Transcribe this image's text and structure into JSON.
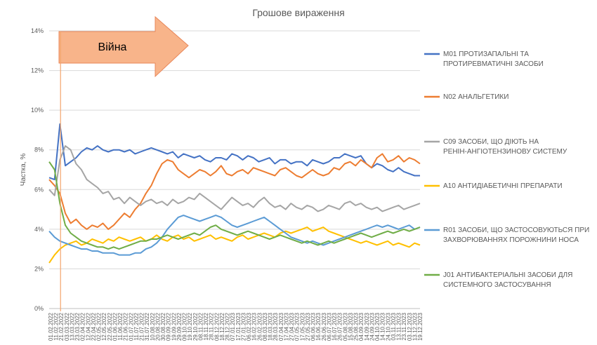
{
  "chart_data": {
    "type": "line",
    "title": "Грошове вираження",
    "ylabel": "Частка, %",
    "xlabel": "",
    "ylim": [
      0,
      14
    ],
    "y_ticks": [
      "0%",
      "2%",
      "4%",
      "6%",
      "8%",
      "10%",
      "12%",
      "14%"
    ],
    "grid": true,
    "legend_position": "right",
    "x_tick_labels": [
      "01.02.2022",
      "11.02.2022",
      "21.02.2022",
      "03.03.2022",
      "13.03.2022",
      "23.03.2022",
      "02.04.2022",
      "12.04.2022",
      "22.04.2022",
      "02.05.2022",
      "12.05.2022",
      "22.05.2022",
      "01.06.2022",
      "11.06.2022",
      "21.06.2022",
      "01.07.2022",
      "11.07.2022",
      "21.07.2022",
      "31.07.2022",
      "10.08.2022",
      "20.08.2022",
      "30.08.2022",
      "09.09.2022",
      "19.09.2022",
      "29.09.2022",
      "09.10.2022",
      "19.10.2022",
      "29.10.2022",
      "08.11.2022",
      "18.11.2022",
      "28.11.2022",
      "08.12.2022",
      "18.12.2022",
      "28.12.2022",
      "07.01.2023",
      "17.01.2023",
      "27.01.2023",
      "06.02.2023",
      "16.02.2023",
      "26.02.2023",
      "08.03.2023",
      "18.03.2023",
      "28.03.2023",
      "07.04.2023",
      "17.04.2023",
      "27.04.2023",
      "07.05.2023",
      "17.05.2023",
      "27.05.2023",
      "06.06.2023",
      "16.06.2023",
      "26.06.2023",
      "06.07.2023",
      "16.07.2023",
      "26.07.2023",
      "05.08.2023",
      "15.08.2023",
      "25.08.2023",
      "04.09.2023",
      "14.09.2023",
      "24.09.2023",
      "04.10.2023",
      "14.10.2023",
      "24.10.2023",
      "03.11.2023",
      "13.11.2023",
      "23.11.2023",
      "03.12.2023",
      "13.12.2023",
      "19.12.2023"
    ],
    "annotation": {
      "label": "Війна",
      "start": "21.02.2022",
      "end": "31.07.2022",
      "marker_date": "24.02.2022"
    },
    "series": [
      {
        "name": "M01 ПРОТИЗАПАЛЬНІ ТА ПРОТИРЕВМАТИЧНІ ЗАСОБИ",
        "color": "#4472C4",
        "values": [
          6.6,
          6.5,
          9.3,
          7.2,
          7.4,
          7.6,
          7.9,
          8.1,
          8.0,
          8.2,
          8.0,
          7.9,
          8.0,
          8.0,
          7.9,
          8.0,
          7.8,
          7.9,
          8.0,
          8.1,
          8.0,
          7.9,
          7.8,
          7.9,
          7.6,
          7.8,
          7.7,
          7.6,
          7.7,
          7.5,
          7.4,
          7.6,
          7.6,
          7.5,
          7.8,
          7.7,
          7.5,
          7.7,
          7.6,
          7.4,
          7.5,
          7.6,
          7.3,
          7.5,
          7.5,
          7.3,
          7.4,
          7.4,
          7.2,
          7.5,
          7.4,
          7.3,
          7.4,
          7.6,
          7.6,
          7.8,
          7.7,
          7.6,
          7.7,
          7.3,
          7.1,
          7.3,
          7.2,
          7.0,
          6.9,
          7.1,
          6.9,
          6.8,
          6.7,
          6.7
        ]
      },
      {
        "name": "N02 АНАЛЬГЕТИКИ",
        "color": "#ED7D31",
        "values": [
          6.5,
          6.2,
          5.8,
          4.8,
          4.3,
          4.5,
          4.2,
          4.0,
          4.2,
          4.1,
          4.3,
          4.0,
          4.2,
          4.5,
          4.8,
          4.6,
          5.0,
          5.3,
          5.8,
          6.2,
          6.8,
          7.3,
          7.5,
          7.4,
          7.0,
          6.8,
          6.6,
          6.8,
          7.0,
          6.9,
          6.7,
          6.9,
          7.2,
          6.8,
          6.7,
          6.9,
          7.0,
          6.8,
          7.1,
          7.0,
          6.9,
          6.8,
          6.7,
          7.0,
          7.1,
          6.9,
          6.7,
          6.6,
          6.8,
          7.0,
          6.8,
          6.7,
          6.8,
          7.1,
          7.0,
          7.3,
          7.4,
          7.2,
          7.5,
          7.3,
          7.1,
          7.6,
          7.8,
          7.4,
          7.5,
          7.7,
          7.4,
          7.6,
          7.5,
          7.3
        ]
      },
      {
        "name": "C09 ЗАСОБИ, ЩО ДІЮТЬ НА РЕНІН-АНГІОТЕНЗИНОВУ СИСТЕМУ",
        "color": "#A5A5A5",
        "values": [
          6.0,
          5.7,
          7.5,
          8.2,
          8.0,
          7.3,
          7.0,
          6.5,
          6.3,
          6.1,
          5.8,
          5.9,
          5.5,
          5.6,
          5.3,
          5.6,
          5.4,
          5.2,
          5.4,
          5.5,
          5.3,
          5.4,
          5.2,
          5.5,
          5.3,
          5.4,
          5.6,
          5.5,
          5.8,
          5.6,
          5.4,
          5.2,
          5.0,
          5.3,
          5.6,
          5.4,
          5.2,
          5.3,
          5.1,
          5.4,
          5.6,
          5.3,
          5.1,
          5.2,
          5.0,
          5.3,
          5.1,
          5.0,
          5.2,
          5.1,
          4.9,
          5.0,
          5.2,
          5.1,
          5.0,
          5.3,
          5.4,
          5.2,
          5.3,
          5.1,
          5.0,
          5.1,
          4.9,
          5.0,
          5.1,
          5.2,
          5.0,
          5.1,
          5.2,
          5.3
        ]
      },
      {
        "name": "A10 АНТИДІАБЕТИЧНІ ПРЕПАРАТИ",
        "color": "#FFC000",
        "values": [
          2.3,
          2.7,
          3.0,
          3.2,
          3.3,
          3.4,
          3.2,
          3.3,
          3.5,
          3.4,
          3.3,
          3.5,
          3.4,
          3.6,
          3.5,
          3.4,
          3.5,
          3.6,
          3.4,
          3.5,
          3.7,
          3.5,
          3.4,
          3.6,
          3.7,
          3.5,
          3.6,
          3.4,
          3.5,
          3.6,
          3.7,
          3.5,
          3.6,
          3.5,
          3.4,
          3.6,
          3.7,
          3.5,
          3.6,
          3.7,
          3.8,
          3.7,
          3.6,
          3.8,
          3.9,
          3.8,
          3.9,
          4.0,
          4.1,
          3.9,
          4.0,
          4.1,
          3.9,
          3.8,
          3.7,
          3.6,
          3.5,
          3.4,
          3.3,
          3.4,
          3.3,
          3.2,
          3.3,
          3.4,
          3.2,
          3.3,
          3.2,
          3.1,
          3.3,
          3.2
        ]
      },
      {
        "name": "R01 ЗАСОБИ, ЩО ЗАСТОСОВУЮТЬСЯ ПРИ ЗАХВОРЮВАННЯХ ПОРОЖНИНИ НОСА",
        "color": "#5B9BD5",
        "values": [
          3.9,
          3.6,
          3.4,
          3.3,
          3.2,
          3.1,
          3.0,
          3.0,
          2.9,
          2.9,
          2.8,
          2.8,
          2.8,
          2.7,
          2.7,
          2.7,
          2.8,
          2.8,
          3.0,
          3.1,
          3.3,
          3.6,
          4.0,
          4.3,
          4.6,
          4.7,
          4.6,
          4.5,
          4.4,
          4.5,
          4.6,
          4.7,
          4.6,
          4.4,
          4.2,
          4.1,
          4.2,
          4.3,
          4.4,
          4.5,
          4.6,
          4.4,
          4.2,
          4.0,
          3.8,
          3.6,
          3.5,
          3.4,
          3.3,
          3.4,
          3.3,
          3.2,
          3.3,
          3.4,
          3.5,
          3.6,
          3.7,
          3.8,
          3.9,
          4.0,
          4.1,
          4.2,
          4.1,
          4.2,
          4.1,
          4.0,
          4.1,
          4.2,
          4.0,
          4.1
        ]
      },
      {
        "name": "J01 АНТИБАКТЕРІАЛЬНІ ЗАСОБИ ДЛЯ СИСТЕМНОГО ЗАСТОСУВАННЯ",
        "color": "#70AD47",
        "values": [
          7.4,
          7.0,
          5.3,
          4.2,
          3.8,
          3.6,
          3.4,
          3.3,
          3.2,
          3.1,
          3.1,
          3.0,
          3.1,
          3.0,
          3.1,
          3.2,
          3.3,
          3.4,
          3.4,
          3.5,
          3.5,
          3.6,
          3.7,
          3.6,
          3.5,
          3.6,
          3.7,
          3.8,
          3.7,
          3.9,
          4.1,
          4.2,
          4.0,
          3.9,
          3.8,
          3.7,
          3.8,
          3.9,
          3.8,
          3.7,
          3.6,
          3.5,
          3.6,
          3.7,
          3.6,
          3.5,
          3.4,
          3.3,
          3.4,
          3.3,
          3.2,
          3.3,
          3.4,
          3.3,
          3.4,
          3.5,
          3.6,
          3.7,
          3.8,
          3.7,
          3.6,
          3.7,
          3.8,
          3.9,
          3.8,
          3.9,
          4.0,
          3.9,
          4.0,
          4.1
        ]
      }
    ]
  }
}
